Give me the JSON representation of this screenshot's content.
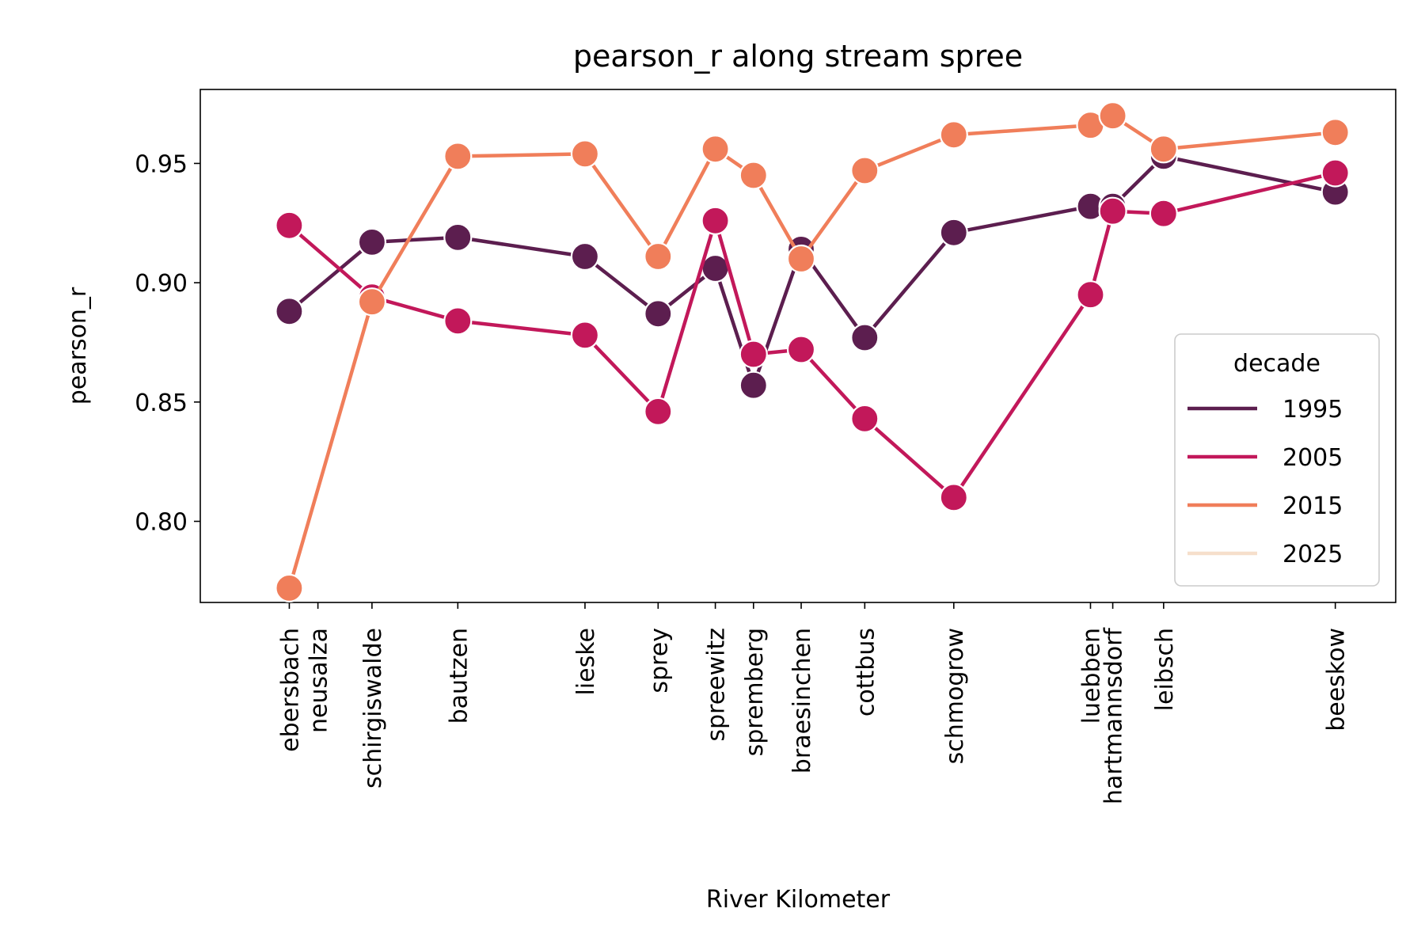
{
  "chart_data": {
    "type": "line",
    "title": "pearson_r along stream spree",
    "xlabel": "River Kilometer",
    "ylabel": "pearson_r",
    "x_range": [
      -28,
      348
    ],
    "ylim": [
      0.766,
      0.981
    ],
    "yticks": [
      0.8,
      0.85,
      0.9,
      0.95
    ],
    "ytick_labels": [
      "0.80",
      "0.85",
      "0.90",
      "0.95"
    ],
    "grid": false,
    "legend": {
      "title": "decade",
      "placement": "lower-right"
    },
    "stations": [
      {
        "name": "ebersbach",
        "km": 0
      },
      {
        "name": "neusalza",
        "km": 9
      },
      {
        "name": "schirgiswalde",
        "km": 26
      },
      {
        "name": "bautzen",
        "km": 53
      },
      {
        "name": "lieske",
        "km": 93
      },
      {
        "name": "sprey",
        "km": 116
      },
      {
        "name": "spreewitz",
        "km": 134
      },
      {
        "name": "spremberg",
        "km": 146
      },
      {
        "name": "braesinchen",
        "km": 161
      },
      {
        "name": "cottbus",
        "km": 181
      },
      {
        "name": "schmogrow",
        "km": 209
      },
      {
        "name": "luebben",
        "km": 252
      },
      {
        "name": "hartmannsdorf",
        "km": 259
      },
      {
        "name": "leibsch",
        "km": 275
      },
      {
        "name": "beeskow",
        "km": 329
      }
    ],
    "series": [
      {
        "name": "1995",
        "color": "#5c1e4f",
        "points": [
          [
            0,
            0.888
          ],
          [
            26,
            0.917
          ],
          [
            53,
            0.919
          ],
          [
            93,
            0.911
          ],
          [
            116,
            0.887
          ],
          [
            134,
            0.906
          ],
          [
            146,
            0.857
          ],
          [
            161,
            0.914
          ],
          [
            181,
            0.877
          ],
          [
            209,
            0.921
          ],
          [
            252,
            0.932
          ],
          [
            259,
            0.932
          ],
          [
            275,
            0.953
          ],
          [
            329,
            0.938
          ]
        ]
      },
      {
        "name": "2005",
        "color": "#c2185a",
        "points": [
          [
            0,
            0.924
          ],
          [
            26,
            0.894
          ],
          [
            53,
            0.884
          ],
          [
            93,
            0.878
          ],
          [
            116,
            0.846
          ],
          [
            134,
            0.926
          ],
          [
            146,
            0.87
          ],
          [
            161,
            0.872
          ],
          [
            181,
            0.843
          ],
          [
            209,
            0.81
          ],
          [
            252,
            0.895
          ],
          [
            259,
            0.93
          ],
          [
            275,
            0.929
          ],
          [
            329,
            0.946
          ]
        ]
      },
      {
        "name": "2015",
        "color": "#f07e5a",
        "points": [
          [
            0,
            0.772
          ],
          [
            26,
            0.892
          ],
          [
            53,
            0.953
          ],
          [
            93,
            0.954
          ],
          [
            116,
            0.911
          ],
          [
            134,
            0.956
          ],
          [
            146,
            0.945
          ],
          [
            161,
            0.91
          ],
          [
            181,
            0.947
          ],
          [
            209,
            0.962
          ],
          [
            252,
            0.966
          ],
          [
            259,
            0.97
          ],
          [
            275,
            0.956
          ],
          [
            329,
            0.963
          ]
        ]
      },
      {
        "name": "2025",
        "color": "#f6dfcb",
        "points": []
      }
    ]
  }
}
